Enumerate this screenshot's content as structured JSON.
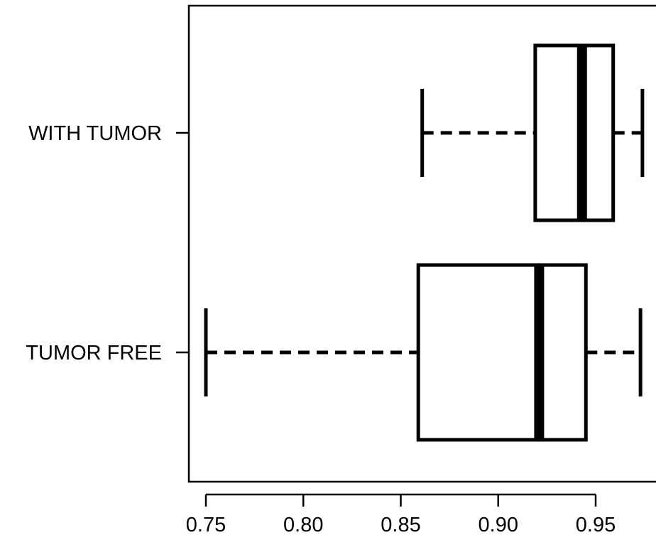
{
  "chart_data": {
    "type": "boxplot",
    "orientation": "horizontal",
    "title": "",
    "xlabel": "",
    "ylabel": "",
    "xlim": [
      0.745,
      0.975
    ],
    "x_ticks": [
      0.75,
      0.8,
      0.85,
      0.9,
      0.95
    ],
    "x_tick_labels": [
      "0.75",
      "0.80",
      "0.85",
      "0.90",
      "0.95"
    ],
    "categories": [
      "WITH TUMOR",
      "TUMOR FREE"
    ],
    "boxes": [
      {
        "label": "WITH TUMOR",
        "whisker_low": 0.861,
        "q1": 0.919,
        "median": 0.943,
        "q3": 0.959,
        "whisker_high": 0.974
      },
      {
        "label": "TUMOR FREE",
        "whisker_low": 0.75,
        "q1": 0.859,
        "median": 0.921,
        "q3": 0.945,
        "whisker_high": 0.973
      }
    ],
    "grid": false,
    "legend": "none",
    "colors": {
      "stroke": "#000000",
      "fill": "#ffffff"
    }
  }
}
